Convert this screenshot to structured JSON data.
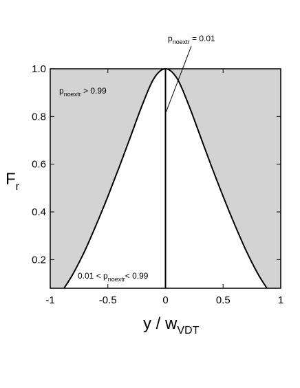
{
  "chart_data": {
    "type": "area",
    "xlim": [
      -1,
      1
    ],
    "ylim": [
      0.08,
      1.0
    ],
    "x_ticks": [
      "-1",
      "-0.5",
      "0",
      "0.5",
      "1"
    ],
    "x_tick_values": [
      -1,
      -0.5,
      0,
      0.5,
      1
    ],
    "y_ticks": [
      "0.2",
      "0.4",
      "0.6",
      "0.8",
      "1.0"
    ],
    "y_tick_values": [
      0.2,
      0.4,
      0.6,
      0.8,
      1.0
    ],
    "xlabel": {
      "main": "y / w",
      "sub": "VDT"
    },
    "ylabel": {
      "main": "F",
      "sub": "r"
    },
    "curve": {
      "x": [
        -0.88,
        -0.8,
        -0.7,
        -0.6,
        -0.5,
        -0.4,
        -0.3,
        -0.2,
        -0.1,
        0,
        0.1,
        0.2,
        0.3,
        0.4,
        0.5,
        0.6,
        0.7,
        0.8,
        0.88
      ],
      "y": [
        0.08,
        0.142,
        0.237,
        0.347,
        0.465,
        0.59,
        0.72,
        0.85,
        0.96,
        1.0,
        0.96,
        0.85,
        0.72,
        0.59,
        0.465,
        0.347,
        0.237,
        0.142,
        0.08
      ]
    },
    "center_line": {
      "x": 0,
      "y": [
        0.08,
        1.0
      ]
    },
    "annotations": {
      "outside": {
        "p": "p",
        "sub": "noextr",
        "rest": " > 0.99"
      },
      "inside": {
        "pre": "0.01 < p",
        "sub": "noextr",
        "rest": "< 0.99"
      },
      "top": {
        "p": "p",
        "sub": "noextr",
        "rest": " = 0.01"
      }
    },
    "colors": {
      "outside_fill": "#d3d3d3",
      "inside_fill": "#ffffff",
      "line": "#000000"
    },
    "grid": false,
    "legend": "none"
  }
}
